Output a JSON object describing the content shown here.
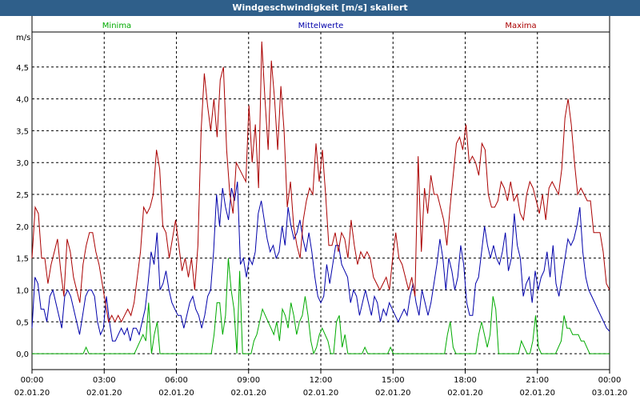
{
  "chart_data": {
    "type": "line",
    "title": "Windgeschwindigkeit [m/s] skaliert",
    "ylabel": "m/s",
    "xlabel": "",
    "ylim": [
      -0.25,
      5.05
    ],
    "xlim": [
      0,
      24
    ],
    "grid": true,
    "y_ticks": [
      "0,0",
      "0,5",
      "1,0",
      "1,5",
      "2,0",
      "2,5",
      "3,0",
      "3,5",
      "4,0",
      "4,5"
    ],
    "x_ticks": [
      {
        "time": "00:00",
        "date": "02.01.20"
      },
      {
        "time": "03:00",
        "date": "02.01.20"
      },
      {
        "time": "06:00",
        "date": "02.01.20"
      },
      {
        "time": "09:00",
        "date": "02.01.20"
      },
      {
        "time": "12:00",
        "date": "02.01.20"
      },
      {
        "time": "15:00",
        "date": "02.01.20"
      },
      {
        "time": "18:00",
        "date": "02.01.20"
      },
      {
        "time": "21:00",
        "date": "02.01.20"
      },
      {
        "time": "00:00",
        "date": "03.01.20"
      }
    ],
    "series": [
      {
        "name": "Minima",
        "color": "#00aa00",
        "legend_position": "left",
        "values": [
          0,
          0,
          0,
          0,
          0,
          0,
          0,
          0,
          0,
          0,
          0,
          0,
          0,
          0,
          0,
          0,
          0,
          0,
          0,
          0.1,
          0,
          0,
          0,
          0,
          0,
          0,
          0,
          0,
          0,
          0,
          0,
          0,
          0,
          0,
          0,
          0,
          0,
          0.1,
          0.2,
          0.3,
          0.2,
          0.8,
          0,
          0.3,
          0.5,
          0,
          0,
          0,
          0,
          0,
          0,
          0,
          0,
          0,
          0,
          0,
          0,
          0,
          0,
          0,
          0,
          0,
          0,
          0,
          0.3,
          0.8,
          0.8,
          0.3,
          0.6,
          1.5,
          1.0,
          0.7,
          0,
          1.3,
          0,
          0,
          0,
          0,
          0.2,
          0.3,
          0.5,
          0.7,
          0.6,
          0.5,
          0.4,
          0.3,
          0.5,
          0.2,
          0.7,
          0.6,
          0.4,
          0.8,
          0.6,
          0.3,
          0.5,
          0.6,
          0.9,
          0.6,
          0.2,
          0,
          0.1,
          0.3,
          0.4,
          0.3,
          0.2,
          0,
          0,
          0.5,
          0.6,
          0.1,
          0.3,
          0,
          0,
          0,
          0,
          0,
          0,
          0.1,
          0,
          0,
          0,
          0,
          0,
          0,
          0,
          0,
          0.1,
          0,
          0,
          0,
          0,
          0,
          0,
          0,
          0,
          0,
          0,
          0,
          0,
          0,
          0,
          0,
          0,
          0,
          0,
          0,
          0.3,
          0.5,
          0.1,
          0,
          0,
          0,
          0,
          0,
          0,
          0,
          0,
          0.3,
          0.5,
          0.3,
          0.1,
          0.3,
          0.9,
          0.7,
          0,
          0,
          0,
          0,
          0,
          0,
          0,
          0,
          0.2,
          0.1,
          0,
          0,
          0.2,
          0.6,
          0.1,
          0,
          0,
          0,
          0,
          0,
          0,
          0.1,
          0.2,
          0.6,
          0.4,
          0.4,
          0.3,
          0.3,
          0.3,
          0.2,
          0.2,
          0.1,
          0,
          0,
          0,
          0,
          0,
          0,
          0,
          0
        ]
      },
      {
        "name": "Mittelwerte",
        "color": "#0000aa",
        "legend_position": "center",
        "values": [
          0.4,
          1.2,
          1.1,
          0.7,
          0.7,
          0.5,
          0.9,
          1.0,
          0.8,
          0.6,
          0.4,
          0.9,
          1.0,
          0.9,
          0.7,
          0.5,
          0.3,
          0.6,
          0.9,
          1.0,
          1.0,
          0.9,
          0.5,
          0.3,
          0.4,
          0.9,
          0.5,
          0.2,
          0.2,
          0.3,
          0.4,
          0.3,
          0.4,
          0.2,
          0.4,
          0.4,
          0.3,
          0.5,
          0.7,
          1.1,
          1.6,
          1.4,
          1.9,
          1.0,
          1.1,
          1.3,
          1.0,
          0.8,
          0.7,
          0.6,
          0.6,
          0.4,
          0.6,
          0.8,
          0.9,
          0.7,
          0.6,
          0.4,
          0.6,
          0.9,
          1.0,
          1.6,
          2.5,
          2.0,
          2.6,
          2.3,
          2.1,
          2.6,
          2.4,
          2.7,
          1.4,
          1.5,
          1.2,
          1.5,
          1.4,
          1.6,
          2.2,
          2.4,
          2.1,
          1.8,
          1.6,
          1.7,
          1.5,
          1.6,
          2.0,
          1.7,
          2.3,
          2.0,
          1.8,
          1.9,
          2.1,
          1.8,
          1.6,
          1.9,
          1.6,
          1.2,
          0.9,
          0.8,
          0.9,
          1.4,
          1.1,
          1.4,
          1.7,
          1.7,
          1.4,
          1.3,
          1.2,
          0.8,
          1.0,
          0.9,
          0.6,
          0.8,
          1.0,
          0.8,
          0.6,
          0.9,
          0.8,
          0.5,
          0.7,
          0.6,
          0.8,
          0.7,
          0.6,
          0.5,
          0.6,
          0.7,
          0.6,
          0.9,
          1.1,
          0.8,
          0.6,
          1.0,
          0.8,
          0.6,
          0.8,
          1.1,
          1.4,
          1.8,
          1.5,
          1.0,
          1.5,
          1.3,
          1.0,
          1.2,
          1.7,
          1.4,
          0.8,
          0.6,
          0.6,
          1.1,
          1.2,
          1.6,
          2.0,
          1.7,
          1.5,
          1.7,
          1.5,
          1.4,
          1.6,
          1.9,
          1.3,
          1.5,
          2.2,
          1.7,
          1.5,
          0.9,
          1.1,
          1.2,
          0.8,
          1.3,
          1.0,
          1.2,
          1.3,
          1.6,
          1.2,
          1.7,
          1.1,
          0.9,
          1.2,
          1.5,
          1.8,
          1.7,
          1.8,
          2.0,
          2.3,
          1.6,
          1.2,
          1.0,
          0.9,
          0.8,
          0.7,
          0.6,
          0.5,
          0.4,
          0.35
        ]
      },
      {
        "name": "Maxima",
        "color": "#aa0000",
        "legend_position": "right",
        "values": [
          1.5,
          2.3,
          2.2,
          1.5,
          1.5,
          1.1,
          1.4,
          1.6,
          1.8,
          1.3,
          0.9,
          1.8,
          1.6,
          1.2,
          1.0,
          0.8,
          1.4,
          1.7,
          1.9,
          1.9,
          1.6,
          1.4,
          1.1,
          0.8,
          0.5,
          0.6,
          0.5,
          0.6,
          0.5,
          0.6,
          0.7,
          0.6,
          0.8,
          1.2,
          1.6,
          2.3,
          2.2,
          2.3,
          2.5,
          3.2,
          2.9,
          2.0,
          1.9,
          1.5,
          1.8,
          2.1,
          1.7,
          1.3,
          1.5,
          1.2,
          1.5,
          1.0,
          1.7,
          3.5,
          4.4,
          3.9,
          3.5,
          4.0,
          3.4,
          4.3,
          4.5,
          3.2,
          2.5,
          2.2,
          3.0,
          2.9,
          2.8,
          2.7,
          3.9,
          3.0,
          3.6,
          2.6,
          4.9,
          4.0,
          3.2,
          4.6,
          4.0,
          3.2,
          4.2,
          3.5,
          2.3,
          2.7,
          2.0,
          1.7,
          1.5,
          2.1,
          2.4,
          2.6,
          2.5,
          3.3,
          2.7,
          3.2,
          2.5,
          1.7,
          1.7,
          1.9,
          1.6,
          1.9,
          1.8,
          1.5,
          2.1,
          1.7,
          1.4,
          1.6,
          1.5,
          1.6,
          1.5,
          1.2,
          1.1,
          1.0,
          1.1,
          1.2,
          1.0,
          1.5,
          1.9,
          1.5,
          1.4,
          1.2,
          1.0,
          1.2,
          0.9,
          3.1,
          1.6,
          2.6,
          2.2,
          2.8,
          2.5,
          2.5,
          2.3,
          2.1,
          1.7,
          2.3,
          2.8,
          3.3,
          3.4,
          3.2,
          3.6,
          3.0,
          3.1,
          3.0,
          2.8,
          3.3,
          3.2,
          2.5,
          2.3,
          2.3,
          2.4,
          2.7,
          2.6,
          2.4,
          2.7,
          2.4,
          2.5,
          2.2,
          2.1,
          2.5,
          2.7,
          2.6,
          2.4,
          2.2,
          2.5,
          2.1,
          2.6,
          2.7,
          2.6,
          2.5,
          2.9,
          3.7,
          4.0,
          3.6,
          3.0,
          2.5,
          2.6,
          2.5,
          2.4,
          2.4,
          1.9,
          1.9,
          1.9,
          1.6,
          1.1,
          1.0
        ]
      }
    ]
  }
}
